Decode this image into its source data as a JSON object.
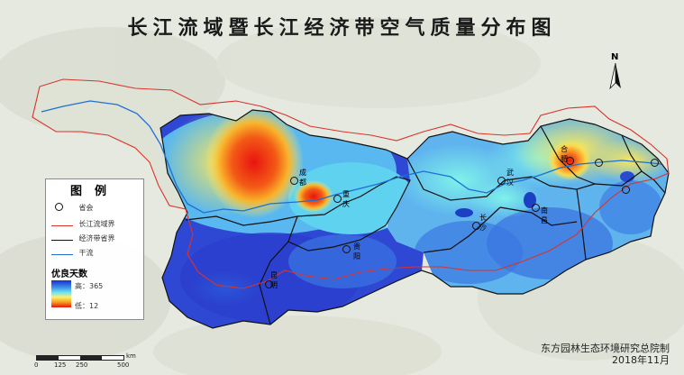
{
  "title": "长江流域暨长江经济带空气质量分布图",
  "legend": {
    "title": "图例",
    "items": [
      {
        "label": "省会",
        "symbol": "capital-circle"
      },
      {
        "label": "长江流域界",
        "color": "#d9342b"
      },
      {
        "label": "经济带省界",
        "color": "#111111"
      },
      {
        "label": "干流",
        "color": "#1f6fd1"
      }
    ],
    "ramp_title": "优良天数",
    "ramp_high": "高：365",
    "ramp_low": "低：12",
    "ramp_colors": [
      "#1a2ccf",
      "#3a8ee8",
      "#6fe3f0",
      "#fdf170",
      "#f7a01c",
      "#e8140f"
    ]
  },
  "north_label": "N",
  "scale": {
    "labels": [
      "0",
      "125",
      "250",
      "500"
    ],
    "unit": "km"
  },
  "credit": {
    "line1": "东方园林生态环境研究总院制",
    "line2": "2018年11月"
  },
  "cities": [
    {
      "name": "成都"
    },
    {
      "name": "重庆"
    },
    {
      "name": "贵阳"
    },
    {
      "name": "昆明"
    },
    {
      "name": "武汉"
    },
    {
      "name": "长沙"
    },
    {
      "name": "南昌"
    },
    {
      "name": "合肥"
    },
    {
      "name": "南京"
    },
    {
      "name": "杭州"
    },
    {
      "name": "上海"
    }
  ]
}
